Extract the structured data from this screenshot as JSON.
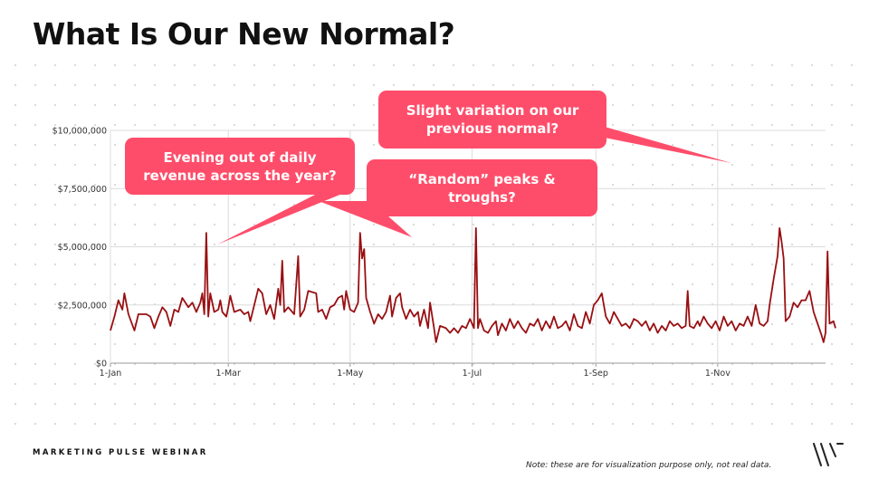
{
  "page": {
    "title": "What Is Our New Normal?",
    "footer": "MARKETING PULSE WEBINAR",
    "note": "Note: these are for visualization purpose only, not real data."
  },
  "callouts": [
    {
      "text": "Slight variation on our previous normal?"
    },
    {
      "text": "Evening out of daily revenue across the year?"
    },
    {
      "text": "“Random” peaks & troughs?"
    }
  ],
  "colors": {
    "accent": "#fe4d6a",
    "line": "#990f12",
    "grid": "#d9d9d9"
  },
  "chart_data": {
    "type": "line",
    "title": "",
    "xlabel": "",
    "ylabel": "",
    "x_ticks": [
      {
        "label": "1-Jan",
        "day": 0
      },
      {
        "label": "1-Mar",
        "day": 59
      },
      {
        "label": "1-May",
        "day": 120
      },
      {
        "label": "1-Jul",
        "day": 181
      },
      {
        "label": "1-Sep",
        "day": 243
      },
      {
        "label": "1-Nov",
        "day": 304
      }
    ],
    "xlim": [
      0,
      358
    ],
    "y_ticks": [
      {
        "label": "$0",
        "value": 0
      },
      {
        "label": "$2,500,000",
        "value": 2500000
      },
      {
        "label": "$5,000,000",
        "value": 5000000
      },
      {
        "label": "$7,500,000",
        "value": 7500000
      },
      {
        "label": "$10,000,000",
        "value": 10000000
      }
    ],
    "ylim": [
      0,
      10000000
    ],
    "grid": true,
    "series": [
      {
        "name": "Daily revenue",
        "points": [
          [
            0,
            1400000
          ],
          [
            2,
            2000000
          ],
          [
            4,
            2700000
          ],
          [
            6,
            2300000
          ],
          [
            7,
            3000000
          ],
          [
            9,
            2100000
          ],
          [
            12,
            1400000
          ],
          [
            14,
            2100000
          ],
          [
            18,
            2100000
          ],
          [
            20,
            2000000
          ],
          [
            22,
            1500000
          ],
          [
            24,
            2000000
          ],
          [
            26,
            2400000
          ],
          [
            28,
            2200000
          ],
          [
            30,
            1600000
          ],
          [
            32,
            2300000
          ],
          [
            34,
            2200000
          ],
          [
            36,
            2800000
          ],
          [
            39,
            2400000
          ],
          [
            41,
            2600000
          ],
          [
            43,
            2200000
          ],
          [
            45,
            2600000
          ],
          [
            46,
            3000000
          ],
          [
            47,
            2100000
          ],
          [
            48,
            5600000
          ],
          [
            49,
            2000000
          ],
          [
            50,
            3000000
          ],
          [
            52,
            2200000
          ],
          [
            54,
            2300000
          ],
          [
            55,
            2700000
          ],
          [
            56,
            2200000
          ],
          [
            58,
            2000000
          ],
          [
            59,
            2400000
          ],
          [
            60,
            2900000
          ],
          [
            62,
            2200000
          ],
          [
            65,
            2300000
          ],
          [
            67,
            2100000
          ],
          [
            69,
            2200000
          ],
          [
            70,
            1800000
          ],
          [
            72,
            2500000
          ],
          [
            74,
            3200000
          ],
          [
            76,
            3000000
          ],
          [
            78,
            2100000
          ],
          [
            80,
            2500000
          ],
          [
            82,
            1900000
          ],
          [
            84,
            3200000
          ],
          [
            85,
            2500000
          ],
          [
            86,
            4400000
          ],
          [
            87,
            2200000
          ],
          [
            89,
            2400000
          ],
          [
            92,
            2100000
          ],
          [
            94,
            4600000
          ],
          [
            95,
            2000000
          ],
          [
            97,
            2300000
          ],
          [
            99,
            3100000
          ],
          [
            103,
            3000000
          ],
          [
            104,
            2200000
          ],
          [
            106,
            2300000
          ],
          [
            108,
            1900000
          ],
          [
            110,
            2400000
          ],
          [
            112,
            2500000
          ],
          [
            114,
            2800000
          ],
          [
            116,
            2900000
          ],
          [
            117,
            2300000
          ],
          [
            118,
            3100000
          ],
          [
            120,
            2300000
          ],
          [
            122,
            2200000
          ],
          [
            124,
            2600000
          ],
          [
            125,
            5600000
          ],
          [
            126,
            4500000
          ],
          [
            127,
            4900000
          ],
          [
            128,
            2800000
          ],
          [
            130,
            2200000
          ],
          [
            132,
            1700000
          ],
          [
            134,
            2100000
          ],
          [
            136,
            1900000
          ],
          [
            138,
            2200000
          ],
          [
            140,
            2900000
          ],
          [
            141,
            2000000
          ],
          [
            143,
            2800000
          ],
          [
            145,
            3000000
          ],
          [
            146,
            2400000
          ],
          [
            148,
            1900000
          ],
          [
            150,
            2300000
          ],
          [
            152,
            2000000
          ],
          [
            154,
            2200000
          ],
          [
            155,
            1600000
          ],
          [
            157,
            2300000
          ],
          [
            159,
            1500000
          ],
          [
            160,
            2600000
          ],
          [
            162,
            1500000
          ],
          [
            163,
            900000
          ],
          [
            165,
            1600000
          ],
          [
            168,
            1500000
          ],
          [
            170,
            1300000
          ],
          [
            172,
            1500000
          ],
          [
            174,
            1300000
          ],
          [
            176,
            1600000
          ],
          [
            178,
            1500000
          ],
          [
            180,
            1900000
          ],
          [
            182,
            1500000
          ],
          [
            183,
            5800000
          ],
          [
            184,
            1500000
          ],
          [
            185,
            1900000
          ],
          [
            187,
            1400000
          ],
          [
            189,
            1300000
          ],
          [
            191,
            1600000
          ],
          [
            193,
            1800000
          ],
          [
            194,
            1200000
          ],
          [
            196,
            1700000
          ],
          [
            198,
            1400000
          ],
          [
            200,
            1900000
          ],
          [
            202,
            1500000
          ],
          [
            204,
            1800000
          ],
          [
            206,
            1500000
          ],
          [
            208,
            1300000
          ],
          [
            210,
            1700000
          ],
          [
            212,
            1600000
          ],
          [
            214,
            1900000
          ],
          [
            216,
            1400000
          ],
          [
            218,
            1800000
          ],
          [
            220,
            1500000
          ],
          [
            222,
            2000000
          ],
          [
            224,
            1500000
          ],
          [
            226,
            1600000
          ],
          [
            228,
            1800000
          ],
          [
            230,
            1400000
          ],
          [
            232,
            2100000
          ],
          [
            234,
            1600000
          ],
          [
            236,
            1500000
          ],
          [
            238,
            2200000
          ],
          [
            240,
            1700000
          ],
          [
            242,
            2500000
          ],
          [
            244,
            2700000
          ],
          [
            246,
            3000000
          ],
          [
            248,
            2000000
          ],
          [
            250,
            1700000
          ],
          [
            252,
            2200000
          ],
          [
            254,
            1900000
          ],
          [
            256,
            1600000
          ],
          [
            258,
            1700000
          ],
          [
            260,
            1500000
          ],
          [
            262,
            1900000
          ],
          [
            264,
            1800000
          ],
          [
            266,
            1600000
          ],
          [
            268,
            1800000
          ],
          [
            270,
            1400000
          ],
          [
            272,
            1700000
          ],
          [
            274,
            1300000
          ],
          [
            276,
            1600000
          ],
          [
            278,
            1400000
          ],
          [
            280,
            1800000
          ],
          [
            282,
            1600000
          ],
          [
            284,
            1700000
          ],
          [
            286,
            1500000
          ],
          [
            288,
            1600000
          ],
          [
            289,
            3100000
          ],
          [
            290,
            1600000
          ],
          [
            292,
            1500000
          ],
          [
            294,
            1800000
          ],
          [
            295,
            1600000
          ],
          [
            297,
            2000000
          ],
          [
            299,
            1700000
          ],
          [
            301,
            1500000
          ],
          [
            303,
            1800000
          ],
          [
            305,
            1400000
          ],
          [
            307,
            2000000
          ],
          [
            309,
            1600000
          ],
          [
            311,
            1800000
          ],
          [
            313,
            1400000
          ],
          [
            315,
            1700000
          ],
          [
            317,
            1600000
          ],
          [
            319,
            2000000
          ],
          [
            321,
            1600000
          ],
          [
            323,
            2500000
          ],
          [
            325,
            1700000
          ],
          [
            327,
            1600000
          ],
          [
            329,
            1800000
          ],
          [
            330,
            2500000
          ],
          [
            332,
            3600000
          ],
          [
            334,
            4600000
          ],
          [
            335,
            5800000
          ],
          [
            336,
            5200000
          ],
          [
            337,
            4500000
          ],
          [
            338,
            1800000
          ],
          [
            340,
            2000000
          ],
          [
            342,
            2600000
          ],
          [
            344,
            2400000
          ],
          [
            346,
            2700000
          ],
          [
            348,
            2700000
          ],
          [
            350,
            3100000
          ],
          [
            352,
            2200000
          ],
          [
            354,
            1700000
          ],
          [
            356,
            1200000
          ],
          [
            357,
            900000
          ],
          [
            358,
            1300000
          ],
          [
            359,
            4800000
          ],
          [
            360,
            1700000
          ],
          [
            362,
            1800000
          ],
          [
            363,
            1500000
          ]
        ]
      }
    ]
  }
}
